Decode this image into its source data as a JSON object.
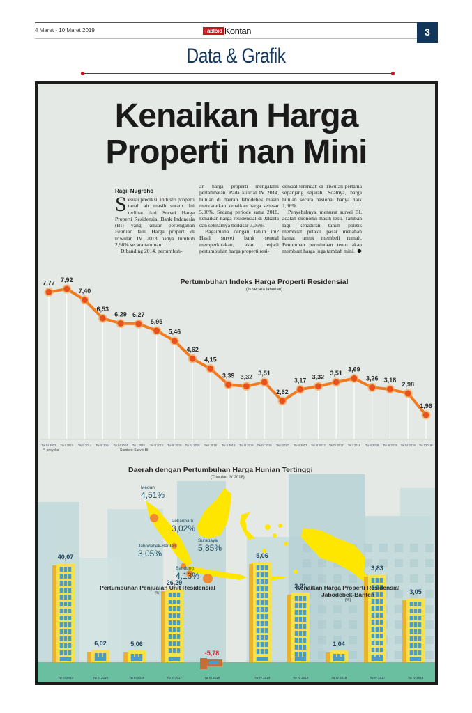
{
  "header": {
    "date": "4 Maret - 10 Maret 2019",
    "logo_tabloid": "Tabloid",
    "logo_kontan": "Kontan",
    "page_number": "3",
    "section_title": "Data & Grafik"
  },
  "article": {
    "headline_line1": "Kenaikan Harga",
    "headline_line2": "Properti nan Mini",
    "byline": "Ragil Nugroho",
    "dropcap": "S",
    "col1_p1": "esuai prediksi, industri properti tanah air masih suram. Ini terlihat dari Survei Harga Properti Residensial Bank Indonesia (BI) yang keluar pertengahan Februari lalu. Harga properti di triwulan IV 2018 hanya tumbuh 2,98% secara tahunan.",
    "col1_p2": "Dibanding 2014, pertumbuh-",
    "col2_p1": "an harga properti mengalami perlambatan. Pada kuartal IV 2014, hunian di daerah Jabodebek masih mencatatkan kenaikan harga sebesar 5,06%. Sedang periode sama 2018, kenaikan harga residensial di Jakarta dan sekitarnya berkisar 3,05%.",
    "col2_p2": "Bagaimana dengan tahun ini? Hasil survei bank sentral memperkirakan, akan terjadi pertumbuhan harga properti resi-",
    "col3_p1": "densial terendah di triwulan pertama sepanjang sejarah. Soalnya, harga hunian secara nasional hanya naik 1,96%.",
    "col3_p2": "Penyebabnya, menurut survei BI, adalah ekonomi masih lesu. Tambah lagi, kehadiran tahun politik membuat pelaku pasar menahan hasrat untuk membeli rumah. Penurunan permintaan tentu akan membuat harga juga tambah mini."
  },
  "colors": {
    "line": "#f07a1f",
    "dot": "#e8501e",
    "building_yellow": "#f7e24a",
    "building_orange": "#e9b22a",
    "window_blue": "#4a9cc4",
    "map_yellow": "#ffe600",
    "city_dot": "#f08a30",
    "ground": "#6abfa0",
    "navy": "#15385c",
    "negative_red": "#c8283a"
  },
  "chart_data": [
    {
      "type": "line",
      "title": "Pertumbuhan Indeks Harga Properti Residensial",
      "subtitle": "(% secara tahunan)",
      "x": [
        "Tw IV 2013",
        "Tw I 2014",
        "Tw II 2014",
        "Tw III 2014",
        "Tw IV 2014",
        "Tw I 2015",
        "Tw II 2015",
        "Tw III 2015",
        "Tw IV 2015",
        "Tw I 2016",
        "Tw II 2016",
        "Tw III 2016",
        "Tw IV 2016",
        "Tw I 2017",
        "Tw II 2017",
        "Tw III 2017",
        "Tw IV 2017",
        "Tw I 2018",
        "Tw II 2018",
        "Tw III 2018",
        "Tw IV 2018",
        "Tw I 2019*"
      ],
      "values": [
        7.77,
        7.92,
        7.4,
        6.53,
        6.29,
        6.27,
        5.95,
        5.46,
        4.62,
        4.15,
        3.39,
        3.32,
        3.51,
        2.62,
        3.17,
        3.32,
        3.51,
        3.69,
        3.26,
        3.18,
        2.98,
        1.96
      ],
      "labels": [
        "7,77",
        "7,92",
        "7,40",
        "6,53",
        "6,29",
        "6,27",
        "5,95",
        "5,46",
        "4,62",
        "4,15",
        "3,39",
        "3,32",
        "3,51",
        "2,62",
        "3,17",
        "3,32",
        "3,51",
        "3,69",
        "3,26",
        "3,18",
        "2,98",
        "1,96"
      ],
      "footnote": "*: proyeksi",
      "source": "Sumber: Survei BI",
      "grid": false
    },
    {
      "type": "map",
      "title": "Daerah dengan Pertumbuhan Harga Hunian Tertinggi",
      "subtitle": "(Triwulan IV 2018)",
      "points": [
        {
          "name": "Medan",
          "value": 4.51,
          "label": "4,51%"
        },
        {
          "name": "Pekanbaru",
          "value": 3.02,
          "label": "3,02%"
        },
        {
          "name": "Surabaya",
          "value": 5.85,
          "label": "5,85%"
        },
        {
          "name": "Jabodebek-Banten",
          "value": 3.05,
          "label": "3,05%"
        },
        {
          "name": "Bandung",
          "value": 4.13,
          "label": "4,13%"
        }
      ]
    },
    {
      "type": "bar",
      "title": "Pertumbuhan Penjualan Unit Residensial",
      "subtitle": "(%)",
      "categories": [
        "Tw III 2014",
        "Tw III 2015",
        "Tw III 2016",
        "Tw III 2017",
        "Tw III 2018"
      ],
      "values": [
        40.07,
        6.02,
        5.06,
        26.29,
        -5.78
      ],
      "labels": [
        "40,07",
        "6,02",
        "5,06",
        "26,29",
        "-5,78"
      ]
    },
    {
      "type": "bar",
      "title": "Kenaikan Harga Properti Residensial Jabodebek-Banten",
      "subtitle": "(%)",
      "categories": [
        "Tw IV 2014",
        "Tw IV 2015",
        "Tw IV 2016",
        "Tw IV 2017",
        "Tw IV 2018"
      ],
      "values": [
        5.06,
        2.81,
        1.04,
        3.83,
        3.05
      ],
      "labels": [
        "5,06",
        "2,81",
        "1,04",
        "3,83",
        "3,05"
      ]
    }
  ]
}
